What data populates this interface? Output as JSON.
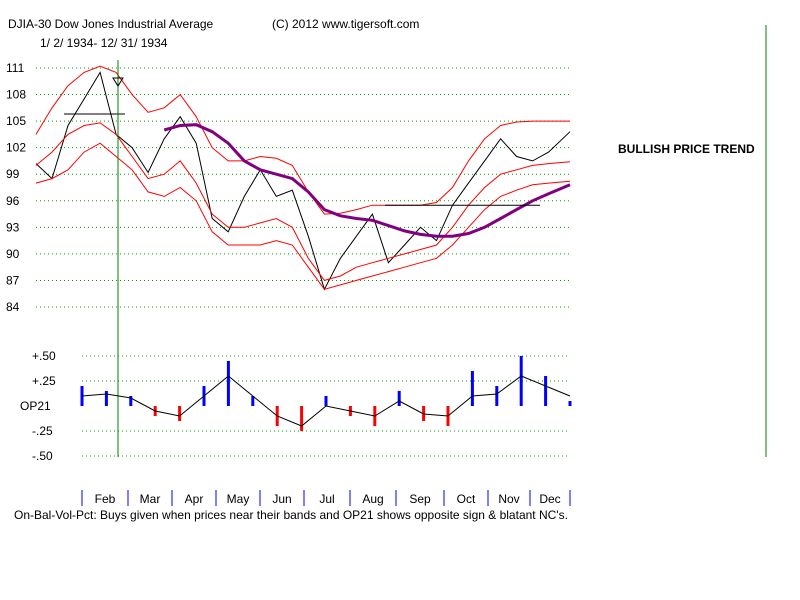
{
  "chart_data": [
    {
      "type": "line",
      "title": "DJIA-30  Dow Jones Industrial Average",
      "copyright": "(C) 2012 www.tigersoft.com",
      "date_range": "1/ 2/ 1934- 12/ 31/ 1934",
      "annotation": "BULLISH PRICE TREND",
      "ylim": [
        84,
        111
      ],
      "y_ticks": [
        111,
        108,
        105,
        102,
        99,
        96,
        93,
        90,
        87,
        84
      ],
      "x": [
        0,
        0.03,
        0.06,
        0.09,
        0.12,
        0.15,
        0.18,
        0.21,
        0.24,
        0.27,
        0.3,
        0.33,
        0.36,
        0.39,
        0.42,
        0.45,
        0.48,
        0.51,
        0.54,
        0.57,
        0.6,
        0.63,
        0.66,
        0.69,
        0.72,
        0.75,
        0.78,
        0.81,
        0.84,
        0.87,
        0.9,
        0.93,
        0.96,
        1.0
      ],
      "series": [
        {
          "name": "DJIA close",
          "color": "#000000",
          "values": [
            100.2,
            98.5,
            104.5,
            107.5,
            110.5,
            103.5,
            102.0,
            99.2,
            103.0,
            105.5,
            102.5,
            94.0,
            92.5,
            96.5,
            99.5,
            96.5,
            97.2,
            92.0,
            86.0,
            89.5,
            92.0,
            94.5,
            89.0,
            91.0,
            93.0,
            91.5,
            95.5,
            98.0,
            100.5,
            103.0,
            101.0,
            100.5,
            101.5,
            103.8
          ]
        },
        {
          "name": "Upper band",
          "color": "#ff0000",
          "values": [
            103.5,
            106.5,
            109.0,
            110.5,
            111.2,
            110.5,
            108.0,
            106.0,
            106.5,
            108.0,
            105.5,
            102.0,
            100.5,
            100.5,
            101.0,
            100.8,
            100.0,
            97.0,
            94.5,
            94.6,
            95.0,
            95.5,
            95.5,
            95.5,
            95.5,
            95.8,
            97.5,
            100.5,
            103.0,
            104.5,
            104.9,
            105.0,
            105.0,
            105.0
          ]
        },
        {
          "name": "Lower band",
          "color": "#ff0000",
          "values": [
            100.0,
            101.5,
            103.5,
            104.5,
            104.8,
            103.5,
            101.0,
            98.5,
            99.0,
            100.5,
            98.0,
            94.5,
            93.0,
            93.0,
            93.5,
            94.0,
            93.0,
            89.5,
            87.0,
            87.5,
            88.5,
            89.0,
            89.5,
            90.0,
            90.5,
            91.0,
            93.0,
            95.5,
            97.5,
            99.0,
            99.5,
            100.0,
            100.2,
            100.4
          ]
        },
        {
          "name": "Middle band",
          "color": "#ff0000",
          "values": [
            98.0,
            98.5,
            99.5,
            101.5,
            102.5,
            101.0,
            99.5,
            97.0,
            96.5,
            97.5,
            96.0,
            92.5,
            91.0,
            91.0,
            91.0,
            91.5,
            91.0,
            88.5,
            86.0,
            86.5,
            87.0,
            87.5,
            88.0,
            88.5,
            89.0,
            89.5,
            91.0,
            93.0,
            95.0,
            96.5,
            97.2,
            97.8,
            98.0,
            98.2
          ]
        },
        {
          "name": "Moving average",
          "color": "#800080",
          "values": [
            null,
            null,
            null,
            null,
            null,
            null,
            null,
            null,
            104.0,
            104.5,
            104.6,
            103.8,
            102.5,
            100.5,
            99.5,
            99.0,
            98.5,
            97.0,
            95.0,
            94.3,
            94.0,
            93.8,
            93.2,
            92.6,
            92.2,
            92.0,
            92.0,
            92.3,
            93.0,
            94.0,
            95.0,
            96.0,
            96.8,
            97.8
          ]
        }
      ],
      "breakout_line_value": 105.8,
      "resistance_line_value": 95.5
    },
    {
      "type": "bar",
      "title": "OP21",
      "y_ticks": [
        {
          "label": "+.50",
          "value": 0.5
        },
        {
          "label": "+.25",
          "value": 0.25
        },
        {
          "label": "OP21",
          "value": 0
        },
        {
          "label": "-.25",
          "value": -0.25
        },
        {
          "label": "-.50",
          "value": -0.5
        }
      ],
      "ylim": [
        -0.5,
        0.5
      ],
      "x": [
        0,
        0.05,
        0.1,
        0.15,
        0.2,
        0.25,
        0.3,
        0.35,
        0.4,
        0.45,
        0.5,
        0.55,
        0.6,
        0.65,
        0.7,
        0.75,
        0.8,
        0.85,
        0.9,
        0.95,
        1.0
      ],
      "values": [
        0.2,
        0.15,
        0.1,
        -0.1,
        -0.15,
        0.2,
        0.45,
        0.1,
        -0.2,
        -0.25,
        0.1,
        -0.1,
        -0.2,
        0.15,
        -0.15,
        -0.2,
        0.35,
        0.2,
        0.5,
        0.3,
        0.05
      ],
      "line_values": [
        0.1,
        0.12,
        0.08,
        -0.05,
        -0.1,
        0.1,
        0.3,
        0.1,
        -0.1,
        -0.2,
        0.0,
        -0.05,
        -0.1,
        0.05,
        -0.08,
        -0.1,
        0.1,
        0.12,
        0.3,
        0.2,
        0.1
      ],
      "positive_color": "#0000ff",
      "negative_color": "#ff0000",
      "line_color": "#000000"
    }
  ],
  "months": [
    "Feb",
    "Mar",
    "Apr",
    "May",
    "Jun",
    "Jul",
    "Aug",
    "Sep",
    "Oct",
    "Nov",
    "Dec"
  ],
  "footer_note": "On-Bal-Vol-Pct: Buys given when prices near their bands and OP21 shows opposite sign & blatant NC's.",
  "colors": {
    "grid": "#00a000",
    "marker_line": "#008000",
    "right_line": "#008000",
    "axis_ticks": "#0000ff"
  }
}
